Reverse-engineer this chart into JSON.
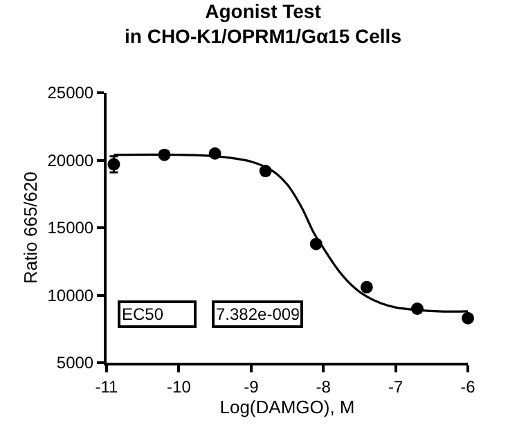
{
  "chart_data": {
    "type": "scatter",
    "title": "Agonist Test\nin CHO-K1/OPRM1/Gα15 Cells",
    "xlabel": "Log(DAMGO), M",
    "ylabel": "Ratio 665/620",
    "series": [
      {
        "color": "#000000",
        "marker": "circle",
        "x": [
          -10.9,
          -10.2,
          -9.5,
          -8.8,
          -8.1,
          -7.4,
          -6.7,
          -6.0
        ],
        "values": [
          19700,
          20400,
          20500,
          19200,
          13800,
          10600,
          9000,
          8300
        ],
        "errors": [
          600,
          null,
          null,
          null,
          null,
          null,
          null,
          null
        ]
      },
      {
        "type": "line",
        "color": "#000000",
        "marker": "none",
        "line_style": "solid",
        "x": [
          -10.9,
          -10.0,
          -9.5,
          -9.0,
          -8.7,
          -8.5,
          -8.3,
          -8.13,
          -8.0,
          -7.8,
          -7.6,
          -7.4,
          -7.2,
          -7.0,
          -6.7,
          -6.4,
          -6.0
        ],
        "values": [
          20400,
          20400,
          20300,
          19900,
          19200,
          18200,
          16500,
          14600,
          13500,
          11900,
          10700,
          9900,
          9400,
          9100,
          8900,
          8800,
          8800
        ]
      }
    ],
    "xlim": [
      -11,
      -6
    ],
    "xticks": [
      -11,
      -10,
      -9,
      -8,
      -7,
      -6
    ],
    "ylim": [
      5000,
      25000
    ],
    "yticks": [
      5000,
      10000,
      15000,
      20000,
      25000
    ],
    "legend": false,
    "annotations": [
      "EC50",
      "7.382e-009"
    ]
  }
}
